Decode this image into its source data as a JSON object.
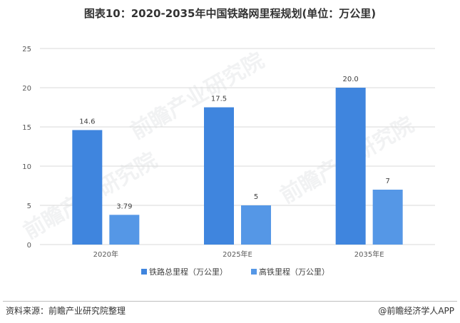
{
  "title": "图表10：2020-2035年中国铁路网里程规划(单位：万公里)",
  "colors": {
    "series1": "#3F85DE",
    "series2": "#5597E6",
    "axis": "#d9d9d9",
    "grid": "#d9d9d9"
  },
  "chart_data": {
    "type": "bar",
    "categories": [
      "2020年",
      "2025年E",
      "2035年E"
    ],
    "series": [
      {
        "name": "铁路总里程（万公里）",
        "values": [
          14.6,
          17.5,
          20.0
        ],
        "labels": [
          "14.6",
          "17.5",
          "20.0"
        ]
      },
      {
        "name": "高铁里程（万公里）",
        "values": [
          3.79,
          5,
          7
        ],
        "labels": [
          "3.79",
          "5",
          "7"
        ]
      }
    ],
    "ylim": [
      0,
      25
    ],
    "yticks": [
      0,
      5,
      10,
      15,
      20,
      25
    ],
    "grid": true,
    "legend": "bottom"
  },
  "footer": {
    "source": "资料来源：前瞻产业研究院整理",
    "brand": "@前瞻经济学人APP"
  },
  "watermark": {
    "text": "前瞻产业研究院"
  }
}
